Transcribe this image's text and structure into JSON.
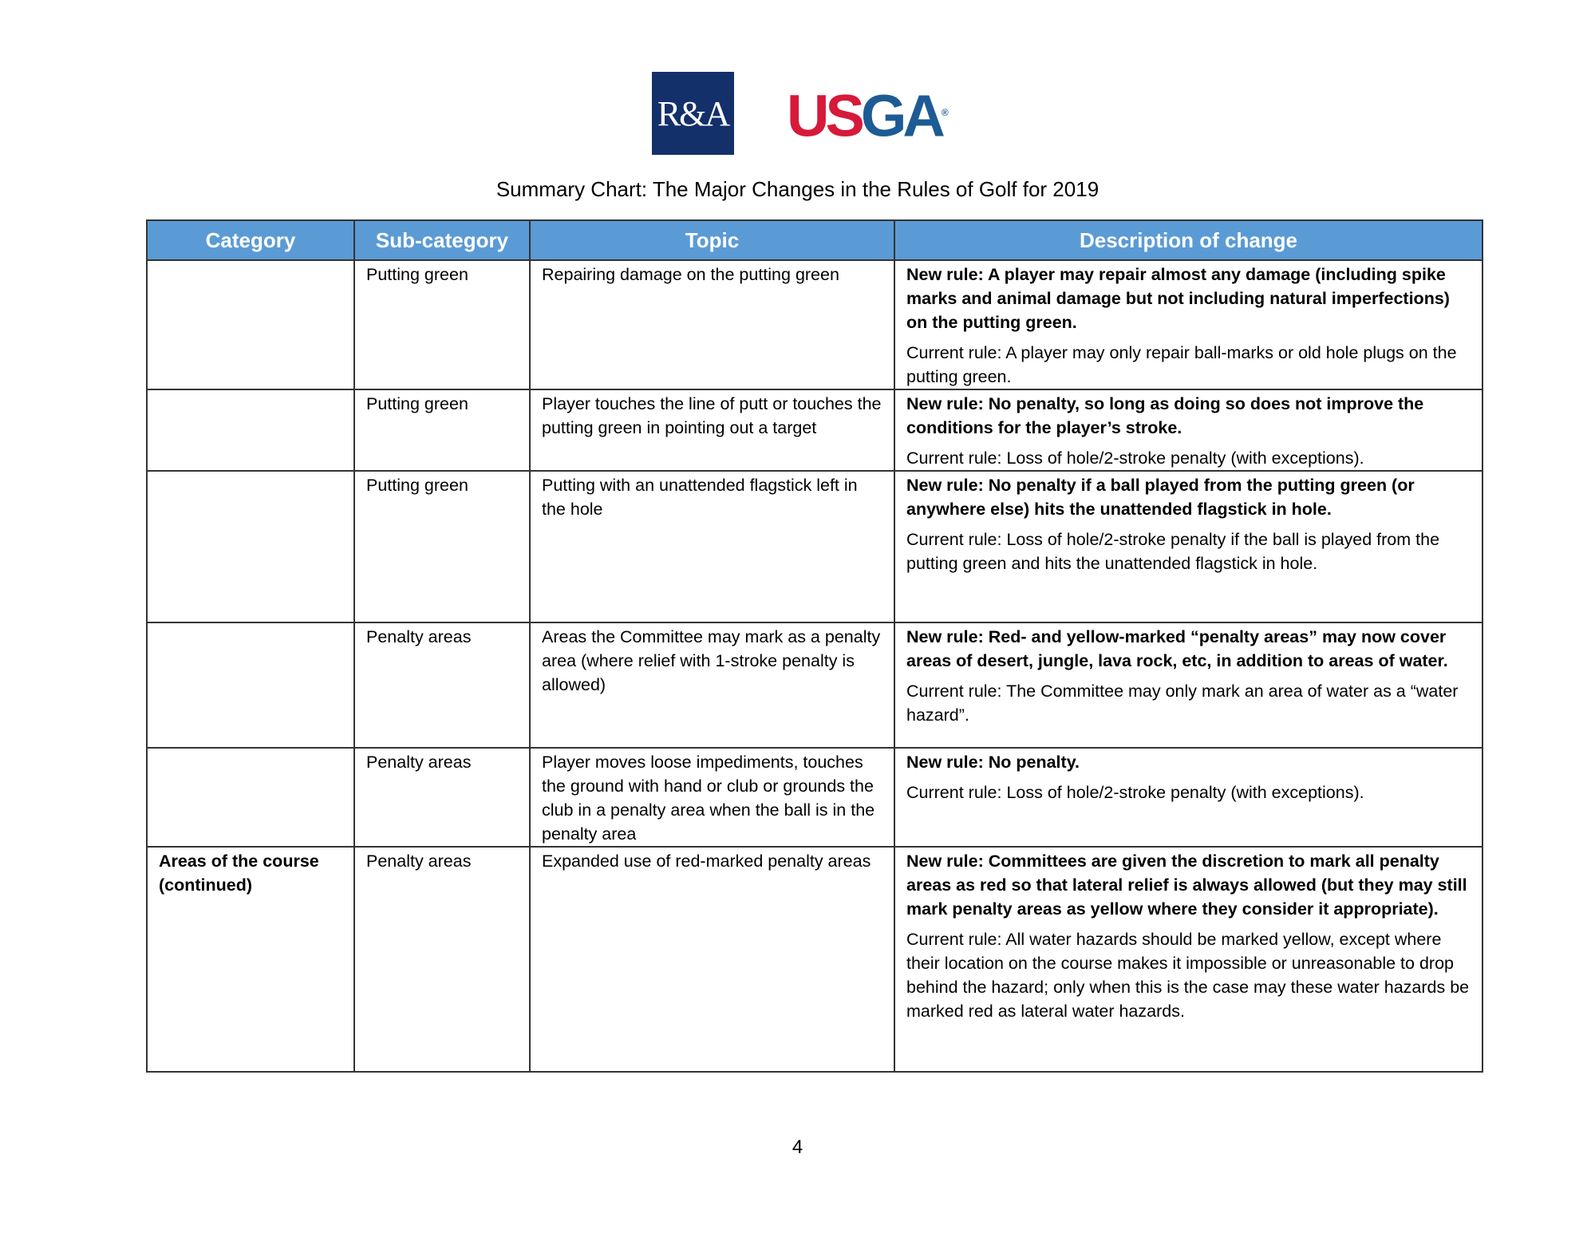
{
  "logos": {
    "ra": "R&A",
    "usga_us": "US",
    "usga_ga": "GA",
    "usga_mark": "®"
  },
  "title": "Summary Chart: The Major Changes in the Rules of Golf for 2019",
  "table": {
    "headers": [
      "Category",
      "Sub-category",
      "Topic",
      "Description of change"
    ],
    "rows": [
      {
        "category": "",
        "subcategory": "Putting green",
        "topic": "Repairing damage on the putting green",
        "new_rule": "New rule: A player may repair almost any damage (including spike marks and animal damage but not including natural imperfections) on the putting green.",
        "current_rule": "Current rule: A player may only repair ball-marks or old hole plugs on the putting green."
      },
      {
        "category": "",
        "subcategory": "Putting green",
        "topic": "Player touches the line of putt or touches the putting green in pointing out a target",
        "new_rule": "New rule: No penalty, so long as doing so does not improve the conditions for the player’s stroke.",
        "current_rule": "Current rule: Loss of hole/2-stroke penalty (with exceptions)."
      },
      {
        "category": "",
        "subcategory": "Putting green",
        "topic": "Putting with an unattended flagstick left in the hole",
        "new_rule": "New rule: No penalty if a ball played from the putting green (or anywhere else) hits the unattended flagstick in hole.",
        "current_rule": "Current rule: Loss of hole/2-stroke penalty if the ball is played from the putting green and hits the unattended flagstick in hole."
      },
      {
        "category": "",
        "subcategory": "Penalty areas",
        "topic": "Areas the Committee may mark as a penalty area (where relief with 1-stroke penalty is allowed)",
        "new_rule": "New rule: Red- and yellow-marked “penalty areas” may now cover areas of desert, jungle, lava rock, etc, in addition to areas of water.",
        "current_rule": "Current rule: The Committee may only mark an area of water as a “water hazard”."
      },
      {
        "category": "",
        "subcategory": "Penalty areas",
        "topic": "Player moves loose impediments, touches the ground with hand or club or grounds the club in a penalty area when the ball is in the penalty area",
        "new_rule": "New rule: No penalty.",
        "current_rule": "Current rule: Loss of hole/2-stroke penalty (with exceptions)."
      },
      {
        "category": "Areas of the course (continued)",
        "subcategory": "Penalty areas",
        "topic": "Expanded use of red-marked penalty areas",
        "new_rule": "New rule: Committees are given the discretion to mark all penalty areas as red so that lateral relief is always allowed (but they may still mark penalty areas as yellow where they consider it appropriate).",
        "current_rule": "Current rule: All water hazards should be marked yellow, except where their location on the course makes it impossible or unreasonable to drop behind the hazard; only when this is the case may these water hazards be marked red as lateral water hazards."
      }
    ]
  },
  "page_number": "4",
  "colors": {
    "header_bg": "#5b9bd5",
    "ra_blue": "#14306b",
    "usga_red": "#d7193a",
    "usga_blue": "#1d5b95"
  }
}
